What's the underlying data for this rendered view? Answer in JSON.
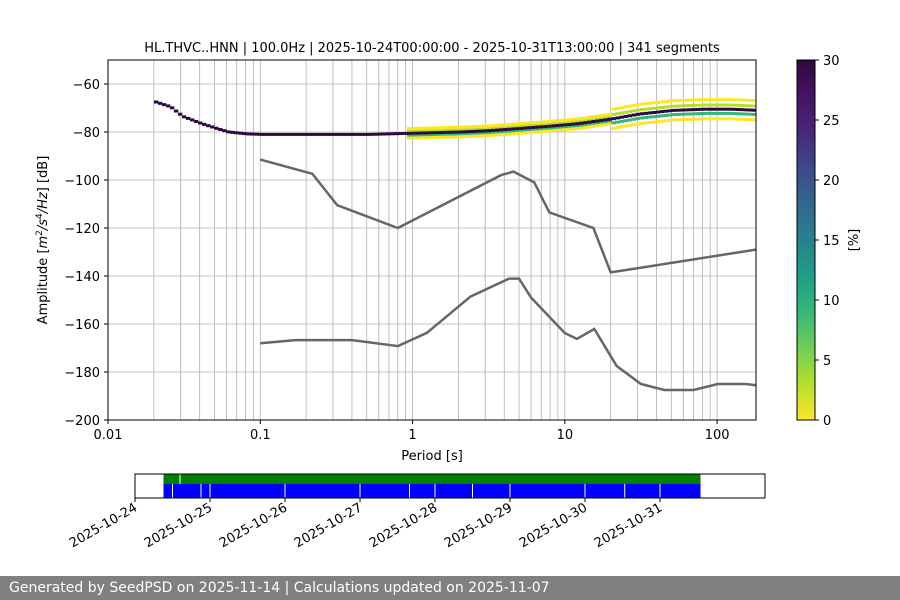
{
  "chart_data": [
    {
      "type": "heatmap",
      "title": "HL.THVC..HNN | 100.0Hz | 2025-10-24T00:00:00 - 2025-10-31T13:00:00 | 341 segments",
      "xlabel": "Period [s]",
      "ylabel_parts": {
        "prefix": "Amplitude [",
        "m": "m",
        "m_exp": "2",
        "slash1": "/s",
        "s_exp": "4",
        "rest": "/Hz",
        "suffix": "] [dB]"
      },
      "xscale": "log",
      "xlim": [
        0.01,
        180
      ],
      "ylim": [
        -200,
        -50
      ],
      "x_ticks": [
        0.01,
        0.1,
        1,
        10,
        100
      ],
      "x_tick_labels": [
        "0.01",
        "0.1",
        "1",
        "10",
        "100"
      ],
      "y_ticks": [
        -200,
        -180,
        -160,
        -140,
        -120,
        -100,
        -80,
        -60
      ],
      "y_tick_labels": [
        "−200",
        "−180",
        "−160",
        "−140",
        "−120",
        "−100",
        "−80",
        "−60"
      ],
      "grid": true,
      "colorbar": {
        "label": "[%]",
        "range": [
          0,
          30
        ],
        "ticks": [
          0,
          5,
          10,
          15,
          20,
          25,
          30
        ],
        "tick_labels": [
          "0",
          "5",
          "10",
          "15",
          "20",
          "25",
          "30"
        ],
        "colormap": "viridis_r"
      },
      "series": [
        {
          "role": "high_noise_model",
          "color": "#666666",
          "points": [
            [
              0.1,
              -91.5
            ],
            [
              0.22,
              -97.4
            ],
            [
              0.32,
              -110.5
            ],
            [
              0.8,
              -120
            ],
            [
              3.8,
              -98
            ],
            [
              4.6,
              -96.5
            ],
            [
              6.3,
              -101
            ],
            [
              7.9,
              -113.5
            ],
            [
              15.4,
              -120
            ],
            [
              20,
              -138.5
            ],
            [
              180,
              -129
            ]
          ]
        },
        {
          "role": "low_noise_model",
          "color": "#666666",
          "points": [
            [
              0.1,
              -168
            ],
            [
              0.17,
              -166.7
            ],
            [
              0.4,
              -166.7
            ],
            [
              0.8,
              -169.2
            ],
            [
              1.24,
              -163.7
            ],
            [
              2.4,
              -148.6
            ],
            [
              4.3,
              -141.1
            ],
            [
              5.0,
              -141.1
            ],
            [
              6.0,
              -149
            ],
            [
              10,
              -163.8
            ],
            [
              12,
              -166.2
            ],
            [
              15.6,
              -162.1
            ],
            [
              21.9,
              -177.5
            ],
            [
              31.6,
              -185
            ],
            [
              45,
              -187.5
            ],
            [
              70,
              -187.5
            ],
            [
              101,
              -185
            ],
            [
              154,
              -185
            ],
            [
              180,
              -185.5
            ]
          ]
        }
      ],
      "psd_mode_curve": [
        [
          0.02,
          -67.5
        ],
        [
          0.025,
          -69.5
        ],
        [
          0.03,
          -73.5
        ],
        [
          0.04,
          -76.5
        ],
        [
          0.05,
          -78.5
        ],
        [
          0.06,
          -80
        ],
        [
          0.08,
          -80.8
        ],
        [
          0.1,
          -81
        ],
        [
          0.2,
          -81
        ],
        [
          0.5,
          -81
        ],
        [
          1,
          -80.5
        ],
        [
          2,
          -80
        ],
        [
          3,
          -79.5
        ],
        [
          5,
          -78.5
        ],
        [
          8,
          -77.5
        ],
        [
          12,
          -76.5
        ],
        [
          20,
          -74.5
        ],
        [
          30,
          -72.5
        ],
        [
          50,
          -71
        ],
        [
          80,
          -70.5
        ],
        [
          120,
          -70.5
        ],
        [
          180,
          -71
        ]
      ]
    },
    {
      "type": "timeline",
      "x_tick_labels": [
        "2025-10-24",
        "2025-10-25",
        "2025-10-26",
        "2025-10-27",
        "2025-10-28",
        "2025-10-29",
        "2025-10-30",
        "2025-10-31"
      ],
      "xlim_days": [
        0,
        8.4
      ],
      "coverage": {
        "start_day": 0.38,
        "end_day": 7.54,
        "color_top": "#008000",
        "color_bottom": "#0000ff"
      },
      "gaps_day": [
        0.5,
        0.88,
        1.0,
        2.0,
        3.0,
        3.66,
        4.0,
        4.5,
        5.0,
        6.0,
        6.53,
        7.0
      ]
    }
  ],
  "footer": {
    "text": "Generated by SeedPSD on 2025-11-14 | Calculations updated on 2025-11-07"
  }
}
